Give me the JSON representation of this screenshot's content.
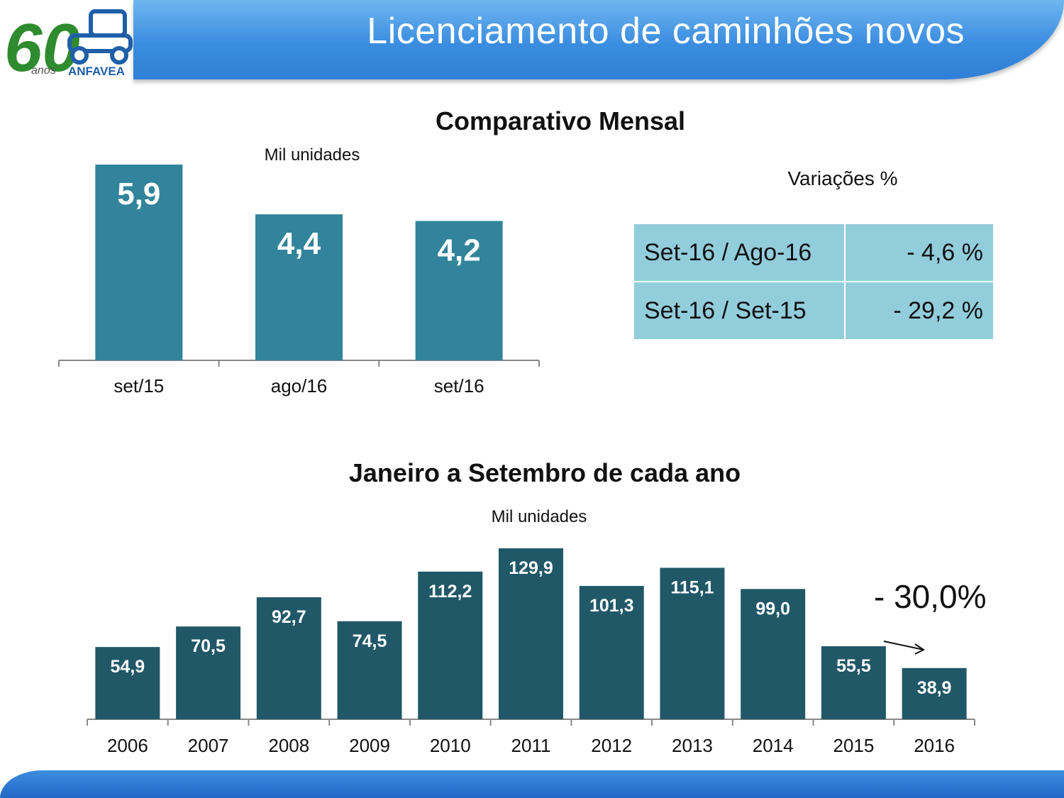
{
  "header": {
    "title": "Licenciamento de caminhões novos"
  },
  "logo": {
    "number_text": "60",
    "sub_text": "anos",
    "brand_text": "ANFAVEA"
  },
  "monthly": {
    "title": "Comparativo Mensal",
    "unit": "Mil unidades"
  },
  "variations": {
    "title": "Variações %",
    "rows": [
      {
        "label": "Set-16 / Ago-16",
        "value": "- 4,6 %"
      },
      {
        "label": "Set-16 / Set-15",
        "value": "- 29,2 %"
      }
    ]
  },
  "annual": {
    "title": "Janeiro a Setembro de cada ano",
    "unit": "Mil unidades",
    "annotation": "- 30,0%"
  },
  "colors": {
    "monthly_bar": "#31849b",
    "annual_bar": "#215868",
    "table_bg": "#92cddc",
    "header_blue": "#3b8de0"
  },
  "chart_data": [
    {
      "type": "bar",
      "title": "Comparativo Mensal",
      "ylabel": "Mil unidades",
      "categories": [
        "set/15",
        "ago/16",
        "set/16"
      ],
      "values": [
        5.9,
        4.4,
        4.2
      ],
      "value_labels": [
        "5,9",
        "4,4",
        "4,2"
      ],
      "ylim": [
        0,
        5.9
      ],
      "grid": false
    },
    {
      "type": "bar",
      "title": "Janeiro a Setembro de cada ano",
      "ylabel": "Mil unidades",
      "categories": [
        "2006",
        "2007",
        "2008",
        "2009",
        "2010",
        "2011",
        "2012",
        "2013",
        "2014",
        "2015",
        "2016"
      ],
      "values": [
        54.9,
        70.5,
        92.7,
        74.5,
        112.2,
        129.9,
        101.3,
        115.1,
        99.0,
        55.5,
        38.9
      ],
      "value_labels": [
        "54,9",
        "70,5",
        "92,7",
        "74,5",
        "112,2",
        "129,9",
        "101,3",
        "115,1",
        "99,0",
        "55,5",
        "38,9"
      ],
      "ylim": [
        0,
        129.9
      ],
      "grid": false
    }
  ]
}
